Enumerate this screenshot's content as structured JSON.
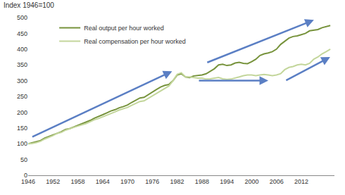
{
  "chart_data": {
    "type": "line",
    "title": "Index 1946=100",
    "x": [
      1946,
      1947,
      1948,
      1949,
      1950,
      1951,
      1952,
      1953,
      1954,
      1955,
      1956,
      1957,
      1958,
      1959,
      1960,
      1961,
      1962,
      1963,
      1964,
      1965,
      1966,
      1967,
      1968,
      1969,
      1970,
      1971,
      1972,
      1973,
      1974,
      1975,
      1976,
      1977,
      1978,
      1979,
      1980,
      1981,
      1982,
      1983,
      1984,
      1985,
      1986,
      1987,
      1988,
      1989,
      1990,
      1991,
      1992,
      1993,
      1994,
      1995,
      1996,
      1997,
      1998,
      1999,
      2000,
      2001,
      2002,
      2003,
      2004,
      2005,
      2006,
      2007,
      2008,
      2009,
      2010,
      2011,
      2012,
      2013,
      2014,
      2015,
      2016,
      2017,
      2018,
      2019
    ],
    "series": [
      {
        "name": "Real output per hour worked",
        "color": "#77933c",
        "values": [
          100,
          103,
          107,
          110,
          118,
          123,
          128,
          134,
          138,
          145,
          148,
          153,
          158,
          164,
          168,
          174,
          181,
          186,
          192,
          198,
          204,
          208,
          214,
          218,
          223,
          231,
          238,
          245,
          247,
          256,
          265,
          272,
          280,
          285,
          288,
          300,
          318,
          322,
          312,
          310,
          315,
          316,
          318,
          322,
          330,
          338,
          350,
          352,
          348,
          350,
          356,
          358,
          355,
          354,
          360,
          368,
          380,
          385,
          388,
          392,
          400,
          415,
          425,
          435,
          440,
          442,
          446,
          450,
          458,
          460,
          462,
          468,
          472,
          475
        ]
      },
      {
        "name": "Real compensation per hour worked",
        "color": "#c3d69b",
        "values": [
          100,
          101,
          104,
          108,
          115,
          120,
          126,
          133,
          136,
          143,
          148,
          152,
          156,
          160,
          164,
          170,
          176,
          180,
          185,
          190,
          196,
          201,
          207,
          211,
          215,
          222,
          228,
          234,
          236,
          244,
          252,
          260,
          268,
          275,
          283,
          300,
          320,
          325,
          312,
          312,
          310,
          308,
          308,
          305,
          306,
          308,
          310,
          306,
          304,
          305,
          308,
          312,
          316,
          318,
          318,
          316,
          318,
          320,
          318,
          316,
          318,
          322,
          335,
          342,
          345,
          350,
          352,
          350,
          355,
          368,
          375,
          385,
          392,
          400
        ]
      }
    ],
    "xlim": [
      1946,
      2020
    ],
    "xticks": [
      1946,
      1952,
      1958,
      1964,
      1970,
      1976,
      1982,
      1988,
      1994,
      2000,
      2006,
      2012
    ],
    "ylim": [
      0,
      500
    ],
    "yticks": [
      0,
      50,
      100,
      150,
      200,
      250,
      300,
      350,
      400,
      450,
      500
    ],
    "grid": false,
    "legend": "upper left"
  }
}
